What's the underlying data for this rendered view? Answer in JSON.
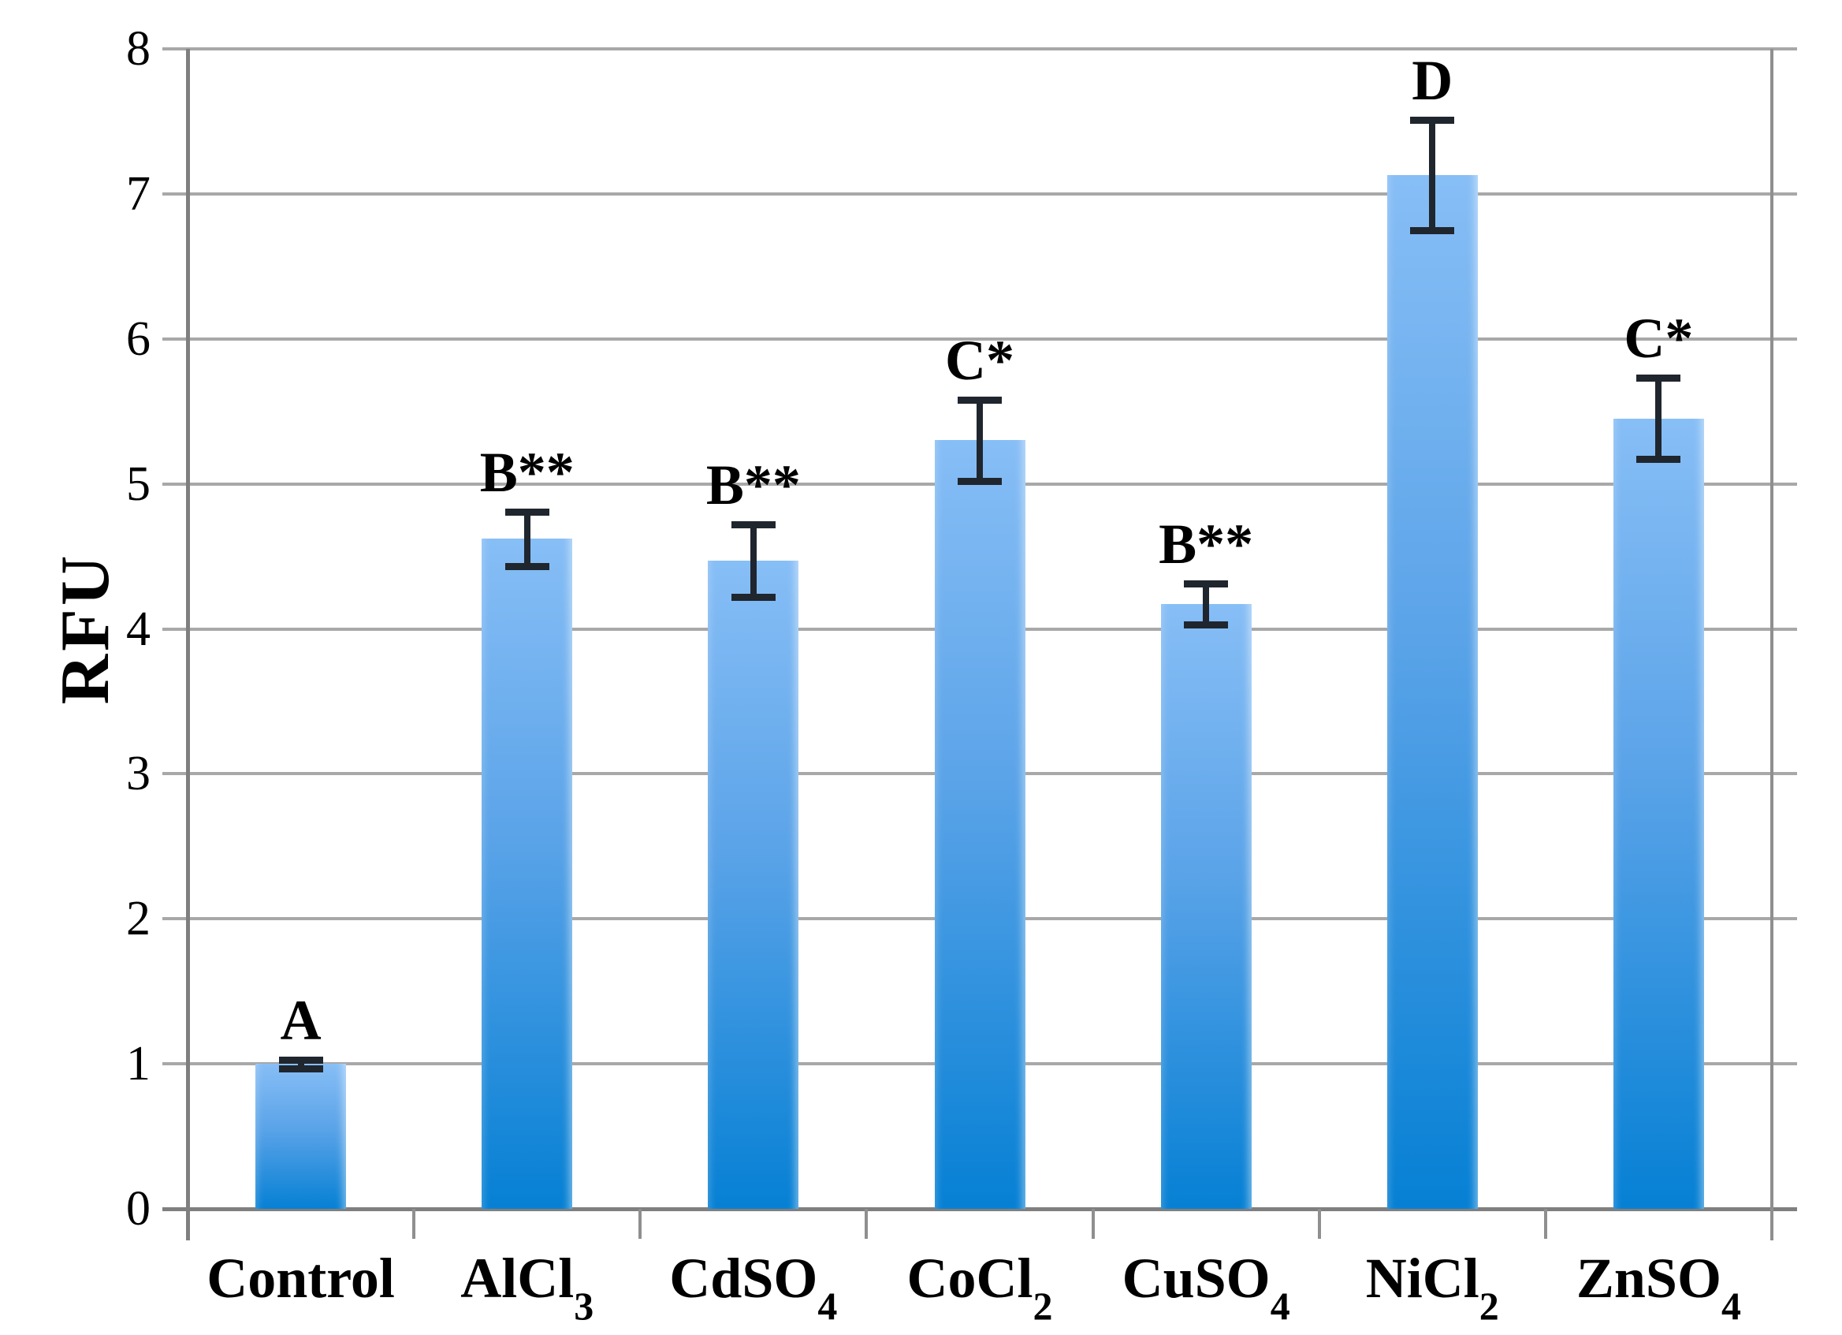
{
  "chart_data": {
    "type": "bar",
    "title": "",
    "xlabel": "",
    "ylabel": "RFU",
    "ylim": [
      0,
      8
    ],
    "yticks": [
      0,
      1,
      2,
      3,
      4,
      5,
      6,
      7,
      8
    ],
    "grid": true,
    "legend": false,
    "categories": [
      {
        "text": "Control",
        "sub": ""
      },
      {
        "text": "AlCl",
        "sub": "3"
      },
      {
        "text": "CdSO",
        "sub": "4"
      },
      {
        "text": "CoCl",
        "sub": "2"
      },
      {
        "text": "CuSO",
        "sub": "4"
      },
      {
        "text": "NiCl",
        "sub": "2"
      },
      {
        "text": "ZnSO",
        "sub": "4"
      }
    ],
    "values": [
      1.0,
      4.62,
      4.47,
      5.3,
      4.17,
      7.13,
      5.45
    ],
    "errors": [
      0.03,
      0.19,
      0.25,
      0.28,
      0.14,
      0.38,
      0.28
    ],
    "annotations": [
      "A",
      "B**",
      "B**",
      "C*",
      "B**",
      "D",
      "C*"
    ],
    "colors": {
      "bar_top": "#87BEF6",
      "bar_bottom": "#0680D4",
      "gridline": "#a8a8a8",
      "axis": "#7f7f7f",
      "error_bar": "#20262e",
      "text": "#000000"
    }
  }
}
